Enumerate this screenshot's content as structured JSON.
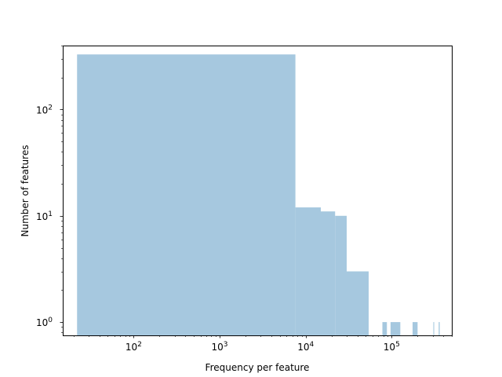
{
  "chart_data": {
    "type": "bar",
    "subtype": "histogram",
    "title": "",
    "xlabel": "Frequency per feature",
    "ylabel": "Number of features",
    "xscale": "log",
    "yscale": "log",
    "xlim": [
      15,
      500000
    ],
    "ylim": [
      0.75,
      400
    ],
    "x_tick_labels": [
      {
        "value": 100,
        "base": "10",
        "exp": "2"
      },
      {
        "value": 1000,
        "base": "10",
        "exp": "3"
      },
      {
        "value": 10000,
        "base": "10",
        "exp": "4"
      },
      {
        "value": 100000,
        "base": "10",
        "exp": "5"
      }
    ],
    "y_tick_labels": [
      {
        "value": 1,
        "base": "10",
        "exp": "0"
      },
      {
        "value": 10,
        "base": "10",
        "exp": "1"
      },
      {
        "value": 100,
        "base": "10",
        "exp": "2"
      }
    ],
    "color": "#a6c8df",
    "grid": false,
    "bins": [
      {
        "x0": 22,
        "x1": 7600,
        "count": 330
      },
      {
        "x0": 7600,
        "x1": 15000,
        "count": 12
      },
      {
        "x0": 15000,
        "x1": 22000,
        "count": 11
      },
      {
        "x0": 22000,
        "x1": 30000,
        "count": 10
      },
      {
        "x0": 30000,
        "x1": 54000,
        "count": 3
      },
      {
        "x0": 78000,
        "x1": 88000,
        "count": 1
      },
      {
        "x0": 97000,
        "x1": 126000,
        "count": 1
      },
      {
        "x0": 175000,
        "x1": 200000,
        "count": 1
      },
      {
        "x0": 305000,
        "x1": 312000,
        "count": 1
      },
      {
        "x0": 352000,
        "x1": 362000,
        "count": 1
      }
    ]
  }
}
